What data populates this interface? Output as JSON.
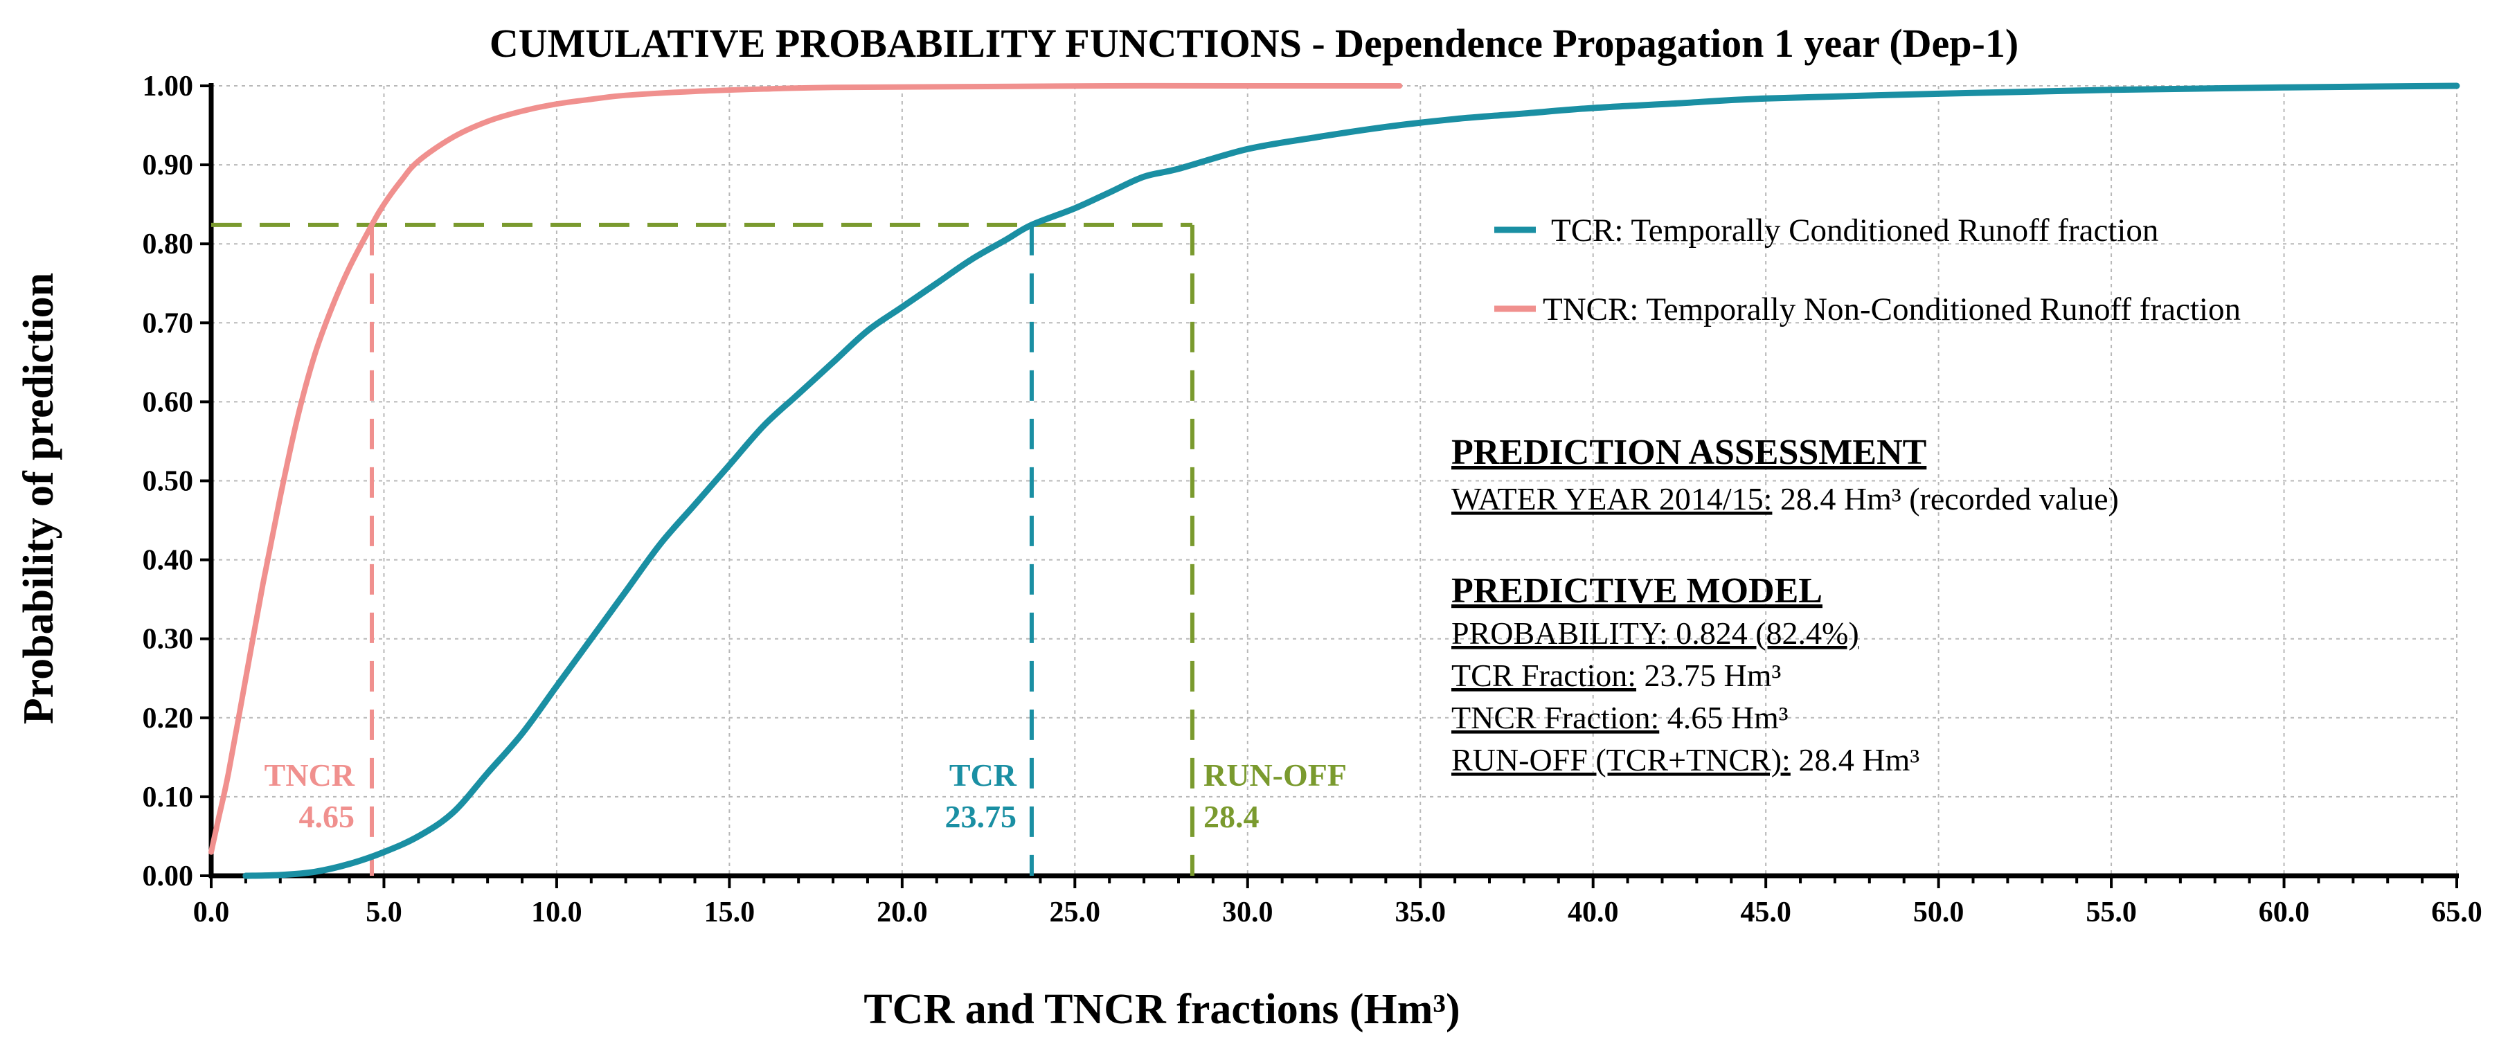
{
  "chart_data": {
    "type": "line",
    "title": "CUMULATIVE PROBABILITY FUNCTIONS - Dependence Propagation 1 year (Dep-1)",
    "xlabel": "TCR and TNCR fractions (Hm³)",
    "ylabel": "Probability of prediction",
    "xlim": [
      0,
      65
    ],
    "ylim": [
      0,
      1
    ],
    "x_ticks": [
      "0.0",
      "5.0",
      "10.0",
      "15.0",
      "20.0",
      "25.0",
      "30.0",
      "35.0",
      "40.0",
      "45.0",
      "50.0",
      "55.0",
      "60.0",
      "65.0"
    ],
    "y_ticks": [
      "0.00",
      "0.10",
      "0.20",
      "0.30",
      "0.40",
      "0.50",
      "0.60",
      "0.70",
      "0.80",
      "0.90",
      "1.00"
    ],
    "grid": true,
    "legend_position": "right",
    "series": [
      {
        "name": "TCR: Temporally Conditioned Runoff fraction",
        "color": "#1a8fa3",
        "x": [
          1.0,
          2.0,
          3.0,
          4.0,
          5.0,
          6.0,
          7.0,
          8.0,
          9.0,
          10.0,
          11.0,
          12.0,
          13.0,
          14.0,
          15.0,
          16.0,
          17.0,
          18.0,
          19.0,
          20.0,
          21.0,
          22.0,
          23.0,
          23.75,
          25.0,
          26.0,
          27.0,
          28.0,
          30.0,
          32.0,
          34.0,
          36.0,
          38.0,
          40.0,
          42.5,
          45.0,
          50.0,
          55.0,
          60.0,
          65.0
        ],
        "y": [
          0.0,
          0.001,
          0.005,
          0.015,
          0.03,
          0.05,
          0.08,
          0.13,
          0.18,
          0.24,
          0.3,
          0.36,
          0.42,
          0.47,
          0.52,
          0.57,
          0.61,
          0.65,
          0.69,
          0.72,
          0.75,
          0.78,
          0.805,
          0.824,
          0.845,
          0.865,
          0.885,
          0.895,
          0.92,
          0.935,
          0.948,
          0.958,
          0.965,
          0.972,
          0.978,
          0.984,
          0.99,
          0.995,
          0.998,
          1.0
        ]
      },
      {
        "name": "TNCR: Temporally Non-Conditioned Runoff fraction",
        "color": "#f0908e",
        "x": [
          0.0,
          0.2,
          0.5,
          1.0,
          1.5,
          2.0,
          2.5,
          3.0,
          3.5,
          4.0,
          4.65,
          5.0,
          5.5,
          6.0,
          7.0,
          8.0,
          9.0,
          10.0,
          11.0,
          12.0,
          14.0,
          16.0,
          18.0,
          22.0,
          26.0,
          30.0,
          34.4
        ],
        "y": [
          0.03,
          0.07,
          0.13,
          0.25,
          0.37,
          0.48,
          0.58,
          0.66,
          0.72,
          0.77,
          0.824,
          0.85,
          0.88,
          0.905,
          0.935,
          0.955,
          0.968,
          0.977,
          0.983,
          0.988,
          0.993,
          0.996,
          0.998,
          0.999,
          1.0,
          1.0,
          1.0
        ]
      }
    ],
    "reference_lines": [
      {
        "name": "TNCR",
        "value_label": "4.65",
        "x": 4.65,
        "y": 0.824,
        "color": "#f0908e"
      },
      {
        "name": "TCR",
        "value_label": "23.75",
        "x": 23.75,
        "y": 0.824,
        "color": "#1a8fa3"
      },
      {
        "name": "RUN-OFF",
        "value_label": "28.4",
        "x": 28.4,
        "y": 0.824,
        "color": "#7a9a2e"
      }
    ],
    "assessment": {
      "heading": "PREDICTION ASSESSMENT",
      "water_year_label": "WATER YEAR 2014/15:",
      "water_year_value": " 28.4 Hm³ (recorded value)",
      "model_heading": "PREDICTIVE MODEL",
      "probability_label": "PROBABILITY:",
      "probability_value": " 0.824 (82.4%)",
      "tcr_label": "TCR Fraction:",
      "tcr_value": "  23.75 Hm³",
      "tncr_label": "TNCR Fraction:",
      "tncr_value": " 4.65 Hm³",
      "runoff_label": "RUN-OFF (TCR+TNCR):",
      "runoff_value": " 28.4 Hm³"
    }
  }
}
